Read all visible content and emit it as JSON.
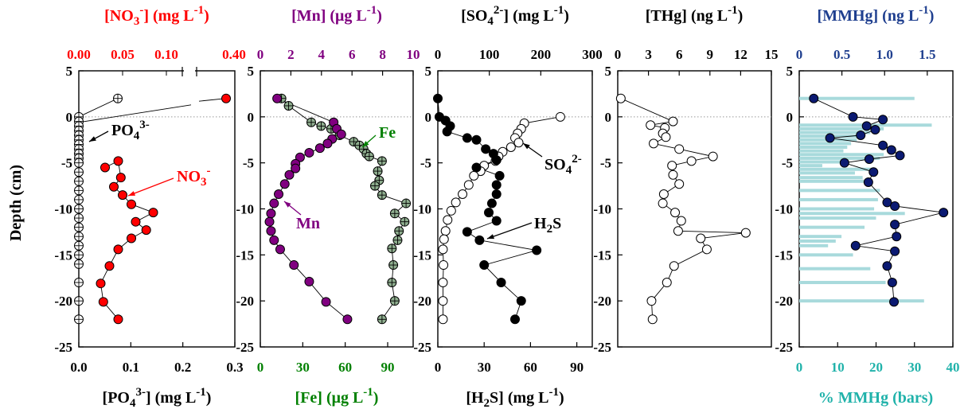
{
  "y_axis": {
    "label": "Depth (cm)",
    "ticks": [
      5,
      0,
      -5,
      -10,
      -15,
      -20,
      -25
    ],
    "range": [
      -25,
      5
    ]
  },
  "colors": {
    "no3": "#ff0000",
    "mn": "#800080",
    "fe": "#008000",
    "fe_fill": "#8fae8f",
    "so4": "#000000",
    "h2s": "#000000",
    "thg": "#000000",
    "mmhg": "#1f3f8f",
    "mmhg_dot": "#0b1a72",
    "pct": "#20b2aa",
    "pct_bar": "#a8dadc"
  },
  "chart_data": [
    {
      "type": "scatter",
      "top_label": {
        "a": "[NO",
        "sub": "3",
        "sup": "-",
        "b": "] (mg L",
        "sup2": "-1",
        "c": ")"
      },
      "top_ticks_left": [
        "0.00",
        "0.05",
        "0.10"
      ],
      "top_ticks_right": [
        "0.40"
      ],
      "bottom_label": {
        "a": "[PO",
        "sub": "4",
        "sup": "3-",
        "b": "] (mg L",
        "sup2": "-1",
        "c": ")"
      },
      "bottom_ticks": [
        "0.0",
        "0.1",
        "0.2",
        "0.3"
      ],
      "xlim_bottom": [
        0,
        0.3
      ],
      "annotations": {
        "po4": {
          "a": "PO",
          "sub": "4",
          "sup": "3-"
        },
        "no3": {
          "a": "NO",
          "sub": "3",
          "sup": "-"
        }
      },
      "series": [
        {
          "name": "NO3-",
          "axis": "top",
          "points": [
            [
              0.4,
              2
            ],
            [
              0.03,
              -5.5
            ],
            [
              0.045,
              -4.8
            ],
            [
              0.048,
              -6.6
            ],
            [
              0.04,
              -7.6
            ],
            [
              0.05,
              -8.5
            ],
            [
              0.06,
              -9.5
            ],
            [
              0.085,
              -10.4
            ],
            [
              0.065,
              -11.4
            ],
            [
              0.077,
              -12.3
            ],
            [
              0.06,
              -13.2
            ],
            [
              0.045,
              -14.4
            ],
            [
              0.035,
              -16.2
            ],
            [
              0.025,
              -18.1
            ],
            [
              0.028,
              -20.1
            ],
            [
              0.045,
              -22.0
            ]
          ]
        },
        {
          "name": "PO43-",
          "axis": "bottom",
          "points": [
            [
              0.075,
              2
            ],
            [
              0,
              0
            ],
            [
              0,
              -0.5
            ],
            [
              0,
              -1
            ],
            [
              0,
              -1.5
            ],
            [
              0,
              -2
            ],
            [
              0,
              -2.5
            ],
            [
              0,
              -3
            ],
            [
              0,
              -3.5
            ],
            [
              0,
              -4
            ],
            [
              0,
              -4.5
            ],
            [
              0,
              -5
            ],
            [
              0,
              -6
            ],
            [
              0,
              -7
            ],
            [
              0,
              -8
            ],
            [
              0,
              -9
            ],
            [
              0,
              -10
            ],
            [
              0,
              -11
            ],
            [
              0,
              -12
            ],
            [
              0,
              -13
            ],
            [
              0,
              -14
            ],
            [
              0,
              -15
            ],
            [
              0,
              -16
            ],
            [
              0,
              -18
            ],
            [
              0,
              -20
            ],
            [
              0,
              -22
            ]
          ]
        }
      ]
    },
    {
      "type": "scatter",
      "top_label": {
        "a": "[Mn] (μg L",
        "sup2": "-1",
        "c": ")"
      },
      "top_ticks": [
        "0",
        "2",
        "4",
        "6",
        "8",
        "10"
      ],
      "xlim_top": [
        0,
        10
      ],
      "bottom_label": {
        "a": "[Fe] (μg L",
        "sup2": "-1",
        "c": ")"
      },
      "bottom_ticks": [
        "0",
        "30",
        "60",
        "90"
      ],
      "xlim_bottom": [
        0,
        108
      ],
      "annotations": {
        "fe": "Fe",
        "mn": "Mn"
      },
      "series": [
        {
          "name": "Mn",
          "axis": "top",
          "points": [
            [
              1.1,
              2
            ],
            [
              4.8,
              -0.6
            ],
            [
              5.0,
              -1.3
            ],
            [
              5.3,
              -1.9
            ],
            [
              4.7,
              -2.4
            ],
            [
              4.4,
              -2.9
            ],
            [
              3.9,
              -3.4
            ],
            [
              3.2,
              -3.9
            ],
            [
              2.6,
              -4.4
            ],
            [
              2.3,
              -5.1
            ],
            [
              2.3,
              -5.6
            ],
            [
              1.9,
              -6.3
            ],
            [
              1.6,
              -7.3
            ],
            [
              1.2,
              -8.4
            ],
            [
              0.9,
              -9.4
            ],
            [
              0.7,
              -10.5
            ],
            [
              0.6,
              -11.4
            ],
            [
              0.7,
              -12.4
            ],
            [
              0.9,
              -13.4
            ],
            [
              1.3,
              -14.4
            ],
            [
              2.2,
              -16.1
            ],
            [
              3.2,
              -17.9
            ],
            [
              4.3,
              -20.1
            ],
            [
              5.7,
              -22.0
            ]
          ]
        },
        {
          "name": "Fe",
          "axis": "bottom",
          "points": [
            [
              15,
              2
            ],
            [
              20,
              1.2
            ],
            [
              36,
              -0.6
            ],
            [
              43,
              -1.0
            ],
            [
              50,
              -1.3
            ],
            [
              56,
              -2.0
            ],
            [
              66,
              -2.7
            ],
            [
              70,
              -3.1
            ],
            [
              73,
              -3.5
            ],
            [
              75,
              -4.0
            ],
            [
              77,
              -4.3
            ],
            [
              86,
              -4.8
            ],
            [
              83,
              -5.9
            ],
            [
              84,
              -6.9
            ],
            [
              81,
              -7.5
            ],
            [
              86,
              -8.5
            ],
            [
              103,
              -9.4
            ],
            [
              95,
              -10.5
            ],
            [
              102,
              -11.4
            ],
            [
              98,
              -12.4
            ],
            [
              97,
              -13.4
            ],
            [
              93,
              -14.3
            ],
            [
              94,
              -16.1
            ],
            [
              93,
              -18.0
            ],
            [
              95,
              -20.0
            ],
            [
              86,
              -22.0
            ]
          ]
        }
      ]
    },
    {
      "type": "scatter",
      "top_label": {
        "a": "[SO",
        "sub": "4",
        "sup": "2-",
        "b": "] (mg L",
        "sup2": "-1",
        "c": ")"
      },
      "top_ticks": [
        "0",
        "100",
        "200",
        "300"
      ],
      "xlim_top": [
        0,
        300
      ],
      "bottom_label": {
        "a": "[H",
        "sub": "2",
        "b": "S]  (mg L",
        "sup2": "-1",
        "c": ")"
      },
      "bottom_ticks": [
        "0",
        "30",
        "60",
        "90"
      ],
      "xlim_bottom": [
        0,
        100
      ],
      "annotations": {
        "so4": {
          "a": "SO",
          "sub": "4",
          "sup": "2-"
        },
        "h2s": {
          "a": "H",
          "sub": "2",
          "b": "S"
        }
      },
      "series": [
        {
          "name": "SO42-",
          "axis": "top",
          "points": [
            [
              238,
              0
            ],
            [
              168,
              -0.7
            ],
            [
              162,
              -1.3
            ],
            [
              155,
              -1.8
            ],
            [
              150,
              -2.3
            ],
            [
              157,
              -2.8
            ],
            [
              142,
              -3.3
            ],
            [
              126,
              -3.8
            ],
            [
              118,
              -4.3
            ],
            [
              112,
              -4.8
            ],
            [
              90,
              -5.3
            ],
            [
              83,
              -5.9
            ],
            [
              70,
              -6.4
            ],
            [
              60,
              -7.4
            ],
            [
              48,
              -8.4
            ],
            [
              35,
              -9.3
            ],
            [
              26,
              -10.2
            ],
            [
              19,
              -11.2
            ],
            [
              15,
              -12.4
            ],
            [
              12,
              -13.3
            ],
            [
              10,
              -14.4
            ],
            [
              11,
              -16.1
            ],
            [
              10,
              -18.0
            ],
            [
              10,
              -20.0
            ],
            [
              10,
              -22.0
            ]
          ]
        },
        {
          "name": "H2S",
          "axis": "bottom",
          "points": [
            [
              0,
              2
            ],
            [
              1,
              0
            ],
            [
              5,
              -0.4
            ],
            [
              8,
              -1.0
            ],
            [
              6,
              -1.6
            ],
            [
              19,
              -2.3
            ],
            [
              25,
              -2.5
            ],
            [
              31,
              -3.5
            ],
            [
              36,
              -4.0
            ],
            [
              38,
              -4.7
            ],
            [
              25,
              -5.5
            ],
            [
              40,
              -6.4
            ],
            [
              38,
              -7.4
            ],
            [
              38,
              -8.4
            ],
            [
              35,
              -9.4
            ],
            [
              33,
              -10.4
            ],
            [
              38,
              -11.3
            ],
            [
              19,
              -12.5
            ],
            [
              27,
              -13.4
            ],
            [
              64,
              -14.5
            ],
            [
              30,
              -16.1
            ],
            [
              41,
              -18.0
            ],
            [
              54,
              -20.0
            ],
            [
              50,
              -22.0
            ]
          ]
        }
      ]
    },
    {
      "type": "scatter",
      "top_label": {
        "a": "[THg] (ng L",
        "sup2": "-1",
        "c": ")"
      },
      "top_ticks": [
        "0",
        "3",
        "6",
        "9",
        "12",
        "15"
      ],
      "xlim_top": [
        0,
        15
      ],
      "series": [
        {
          "name": "THg",
          "axis": "top",
          "points": [
            [
              0.3,
              2
            ],
            [
              5.4,
              -0.5
            ],
            [
              3.2,
              -0.9
            ],
            [
              4.6,
              -1.2
            ],
            [
              4.4,
              -1.8
            ],
            [
              4.7,
              -2.2
            ],
            [
              3.5,
              -2.9
            ],
            [
              6.0,
              -3.5
            ],
            [
              9.3,
              -4.3
            ],
            [
              7.2,
              -4.8
            ],
            [
              5.3,
              -5.3
            ],
            [
              5.4,
              -6.3
            ],
            [
              6.0,
              -7.3
            ],
            [
              4.5,
              -8.4
            ],
            [
              4.4,
              -9.4
            ],
            [
              5.6,
              -10.4
            ],
            [
              6.2,
              -11.3
            ],
            [
              5.9,
              -12.4
            ],
            [
              12.5,
              -12.6
            ],
            [
              8.1,
              -13.2
            ],
            [
              8.7,
              -14.4
            ],
            [
              5.5,
              -16.2
            ],
            [
              4.8,
              -18.0
            ],
            [
              3.3,
              -20.0
            ],
            [
              3.4,
              -22.0
            ]
          ]
        }
      ]
    },
    {
      "type": "scatter",
      "top_label": {
        "a": "[MMHg] (ng L",
        "sup2": "-1",
        "c": ")"
      },
      "top_ticks": [
        "0",
        "0.5",
        "1.0",
        "1.5"
      ],
      "xlim_top": [
        0,
        1.8
      ],
      "bottom_label": {
        "a": "% MMHg (bars)"
      },
      "bottom_ticks": [
        "0",
        "10",
        "20",
        "30",
        "40"
      ],
      "xlim_bottom": [
        0,
        40
      ],
      "series": [
        {
          "name": "MMHg",
          "axis": "top",
          "points": [
            [
              0.17,
              2
            ],
            [
              0.63,
              0
            ],
            [
              0.98,
              -0.3
            ],
            [
              0.79,
              -1.0
            ],
            [
              0.89,
              -1.4
            ],
            [
              0.72,
              -2.0
            ],
            [
              0.36,
              -2.3
            ],
            [
              0.98,
              -3.1
            ],
            [
              1.08,
              -3.6
            ],
            [
              1.18,
              -4.2
            ],
            [
              0.82,
              -4.6
            ],
            [
              0.53,
              -5.0
            ],
            [
              0.87,
              -6.0
            ],
            [
              0.81,
              -7.1
            ],
            [
              1.03,
              -9.3
            ],
            [
              1.12,
              -9.7
            ],
            [
              1.69,
              -10.4
            ],
            [
              1.12,
              -11.7
            ],
            [
              1.14,
              -13.0
            ],
            [
              0.66,
              -14.0
            ],
            [
              1.12,
              -14.6
            ],
            [
              1.03,
              -16.2
            ],
            [
              1.09,
              -18.0
            ],
            [
              1.11,
              -20.1
            ]
          ]
        },
        {
          "name": "% MMHg",
          "axis": "bottom",
          "type": "bar",
          "bars": [
            [
              30.0,
              2
            ],
            [
              34.5,
              -0.9
            ],
            [
              22.0,
              -1.3
            ],
            [
              18.5,
              -1.7
            ],
            [
              16.0,
              -2.1
            ],
            [
              15.0,
              -2.5
            ],
            [
              13.5,
              -2.9
            ],
            [
              12.5,
              -3.3
            ],
            [
              11.5,
              -3.7
            ],
            [
              22.0,
              -4.1
            ],
            [
              21.0,
              -4.5
            ],
            [
              13.0,
              -4.9
            ],
            [
              6.0,
              -5.3
            ],
            [
              20.0,
              -5.7
            ],
            [
              14.5,
              -6.1
            ],
            [
              16.5,
              -6.6
            ],
            [
              19.0,
              -7.0
            ],
            [
              21.0,
              -8.0
            ],
            [
              20.5,
              -9.0
            ],
            [
              19.5,
              -10.0
            ],
            [
              27.5,
              -10.5
            ],
            [
              20.0,
              -11.0
            ],
            [
              17.0,
              -12.0
            ],
            [
              11.0,
              -13.0
            ],
            [
              9.5,
              -13.5
            ],
            [
              7.5,
              -14.0
            ],
            [
              14.0,
              -15.0
            ],
            [
              18.5,
              -16.5
            ],
            [
              22.5,
              -18.0
            ],
            [
              32.5,
              -20.0
            ]
          ]
        }
      ]
    }
  ]
}
